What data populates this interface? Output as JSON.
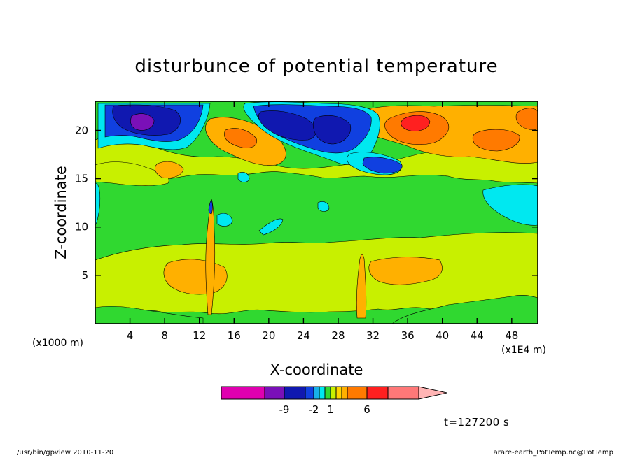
{
  "chart_data": {
    "type": "heatmap",
    "title": "disturbunce of potential temperature",
    "xlabel": "X-coordinate",
    "ylabel": "Z-coordinate",
    "x_unit_left": "(x1000 m)",
    "x_unit_right": "(x1E4 m)",
    "xlim": [
      0,
      51
    ],
    "ylim": [
      0,
      23
    ],
    "x_ticks": [
      4,
      8,
      12,
      16,
      20,
      24,
      28,
      32,
      36,
      40,
      44,
      48
    ],
    "y_ticks": [
      5,
      10,
      15,
      20
    ],
    "colorbar": {
      "colors": [
        "#e000b0",
        "#7a10b8",
        "#1018b0",
        "#1040e0",
        "#18b0e8",
        "#00e8f0",
        "#30d830",
        "#c8f000",
        "#ffd400",
        "#ffb000",
        "#ff7a00",
        "#ff2020",
        "#ff7878",
        "#ffb4b4"
      ],
      "tick_labels": [
        "-9",
        "-2",
        "1",
        "6"
      ]
    },
    "annotation": "t=127200 s",
    "footer_left": "/usr/bin/gpview   2010-11-20",
    "footer_right": "arare-earth_PotTemp.nc@PotTemp"
  }
}
